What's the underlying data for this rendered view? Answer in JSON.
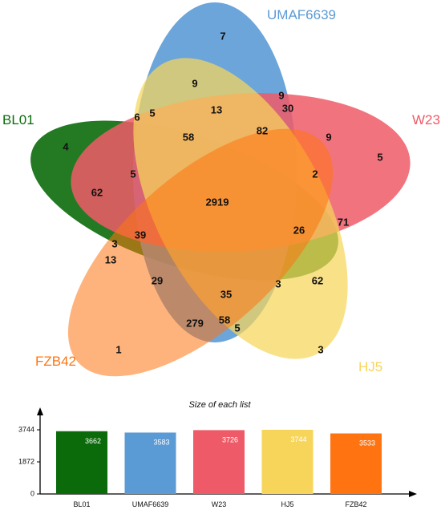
{
  "sets": [
    {
      "id": "BL01",
      "label": "BL01",
      "color": "#0b6b0b"
    },
    {
      "id": "UMAF6639",
      "label": "UMAF6639",
      "color": "#5b9bd5"
    },
    {
      "id": "W23",
      "label": "W23",
      "color": "#ee5a67"
    },
    {
      "id": "HJ5",
      "label": "HJ5",
      "color": "#f7d55a"
    },
    {
      "id": "FZB42",
      "label": "FZB42",
      "color": "#ff7410"
    }
  ],
  "venn_counts": [
    "7",
    "9",
    "13",
    "9",
    "30",
    "6",
    "5",
    "58",
    "82",
    "9",
    "5",
    "4",
    "5",
    "2",
    "62",
    "2919",
    "71",
    "39",
    "26",
    "3",
    "13",
    "29",
    "35",
    "3",
    "62",
    "279",
    "58",
    "5",
    "1",
    "3"
  ],
  "chart_data": {
    "type": "bar",
    "title": "Size of each list",
    "categories": [
      "BL01",
      "UMAF6639",
      "W23",
      "HJ5",
      "FZB42"
    ],
    "values": [
      3662,
      3583,
      3726,
      3744,
      3533
    ],
    "value_labels": [
      "3662",
      "3583",
      "3726",
      "3744",
      "3533"
    ],
    "yticks": [
      "3744",
      "1872",
      "0"
    ],
    "ylim": [
      0,
      3744
    ],
    "colors": [
      "#0b6b0b",
      "#5b9bd5",
      "#ee5a67",
      "#f7d55a",
      "#ff7410"
    ]
  }
}
